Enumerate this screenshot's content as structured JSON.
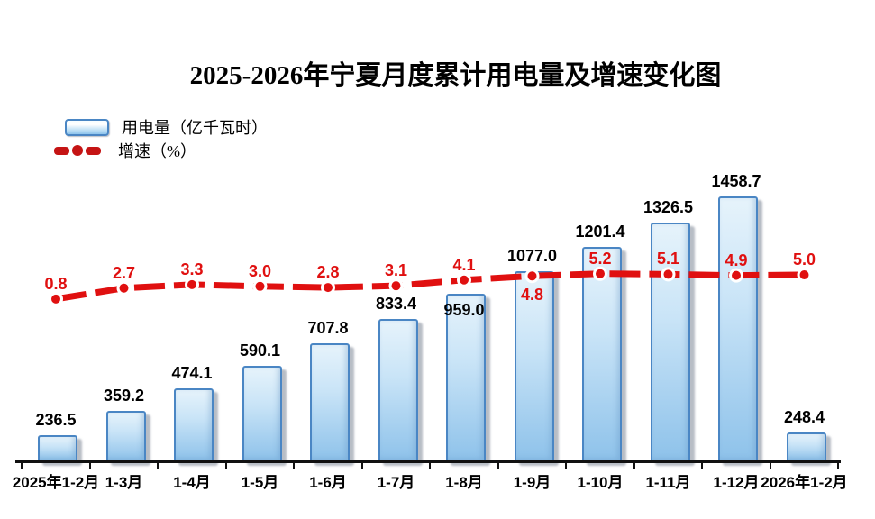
{
  "title": "2025-2026年宁夏月度累计用电量及增速变化图",
  "legend": [
    {
      "label": "用电量（亿千瓦时）",
      "swatch": "bar-swatch"
    },
    {
      "label": "增速（%）",
      "swatch": "line-swatch"
    }
  ],
  "colors": {
    "line": "#e01010",
    "legend_line": "#c51414",
    "bar_border": "#4a86c4",
    "bar_fill_light": "#e6f3fb",
    "bar_fill_dark": "#8ec2ea",
    "bar_shadow": "#7d8796",
    "bar_label": "#000000",
    "line_label": "#e01010",
    "axis": "#111111"
  },
  "chart_data": {
    "type": "bar+line",
    "title": "2025-2026年宁夏月度累计用电量及增速变化图",
    "categories": [
      "2025年1-2月",
      "1-3月",
      "1-4月",
      "1-5月",
      "1-6月",
      "1-7月",
      "1-8月",
      "1-9月",
      "1-10月",
      "1-11月",
      "1-12月",
      "2026年1-2月"
    ],
    "series": [
      {
        "name": "用电量（亿千瓦时）",
        "type": "bar",
        "values": [
          236.5,
          359.2,
          474.1,
          590.1,
          707.8,
          833.4,
          959.0,
          1077.0,
          1201.4,
          1326.5,
          1458.7,
          248.4
        ]
      },
      {
        "name": "增速（%）",
        "type": "line",
        "values": [
          0.8,
          2.7,
          3.3,
          3.0,
          2.8,
          3.1,
          4.1,
          4.8,
          5.2,
          5.1,
          4.9,
          5.0
        ]
      }
    ],
    "grid": false,
    "legend_position": "top-left",
    "value_axis_visible": false,
    "bar_label_inside_idx": [
      6
    ],
    "line_label_below_idx": [
      7
    ]
  }
}
